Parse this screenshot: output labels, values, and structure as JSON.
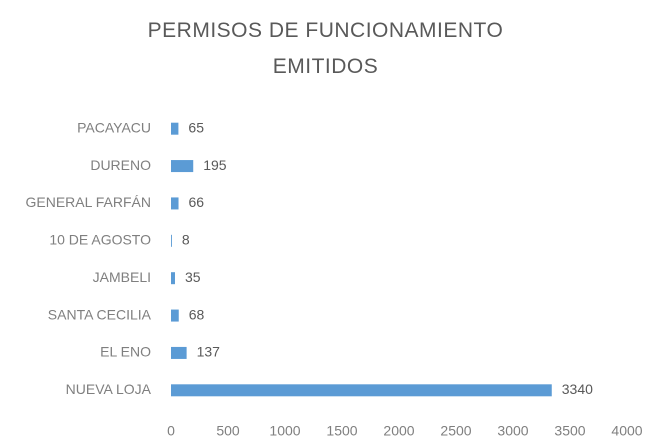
{
  "chart_data": {
    "type": "hbar",
    "title": "PERMISOS DE FUNCIONAMIENTO EMITIDOS",
    "categories": [
      "PACAYACU",
      "DURENO",
      "GENERAL FARFÁN",
      "10 DE AGOSTO",
      "JAMBELI",
      "SANTA CECILIA",
      "EL ENO",
      "NUEVA LOJA"
    ],
    "values": [
      65,
      195,
      66,
      8,
      35,
      68,
      137,
      3340
    ],
    "color": "#5b9bd5",
    "xlim": [
      0,
      4000
    ],
    "xticks": [
      0,
      500,
      1000,
      1500,
      2000,
      2500,
      3000,
      3500,
      4000
    ],
    "grid": false
  }
}
